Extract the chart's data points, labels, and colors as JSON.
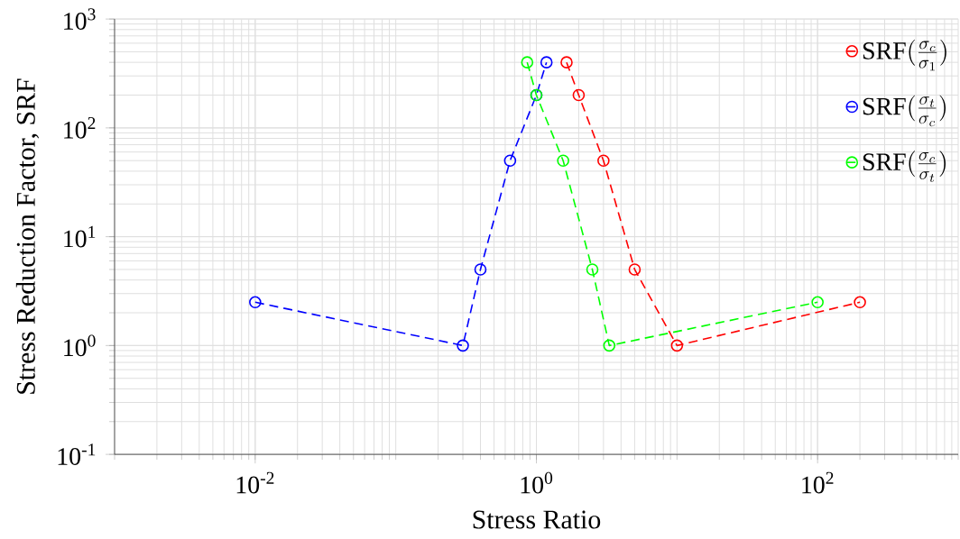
{
  "chart_data": {
    "type": "line",
    "xlabel": "Stress Ratio",
    "ylabel": "Stress Reduction Factor, SRF",
    "log": "xy",
    "xlim": [
      0.001,
      1000
    ],
    "ylim": [
      0.1,
      1000
    ],
    "xticks": [
      {
        "value": 0.01,
        "label": "10$^{-2}$"
      },
      {
        "value": 1,
        "label": "10$^{0}$"
      },
      {
        "value": 100,
        "label": "10$^{2}$"
      }
    ],
    "yticks": [
      {
        "value": 0.1,
        "label": "10$^{-1}$"
      },
      {
        "value": 1,
        "label": "10$^{0}$"
      },
      {
        "value": 10,
        "label": "10$^{1}$"
      },
      {
        "value": 100,
        "label": "10$^{2}$"
      },
      {
        "value": 1000,
        "label": "10$^{3}$"
      }
    ],
    "grid": true,
    "legend": "top right",
    "marker": "circle",
    "line_style": "dashed",
    "series": [
      {
        "name": "\\mathrm{SRF}(\\frac{\\sigma_c}{\\sigma_1})",
        "color": "#ff0000",
        "x": [
          1.64,
          2,
          3,
          5,
          10,
          200
        ],
        "values": [
          400,
          200,
          50,
          5,
          1,
          2.5
        ]
      },
      {
        "name": "\\mathrm{SRF}(\\frac{\\sigma_t}{\\sigma_c})",
        "color": "#0000ff",
        "x": [
          0.01,
          0.3,
          0.4,
          0.65,
          1,
          1.18
        ],
        "values": [
          2.5,
          1,
          5,
          50,
          200,
          400
        ]
      },
      {
        "name": "\\mathrm{SRF}(\\frac{\\sigma_c}{\\sigma_t})",
        "color": "#00ff00",
        "x": [
          0.86,
          1,
          1.55,
          2.5,
          3.3,
          100
        ],
        "values": [
          400,
          200,
          50,
          5,
          1,
          2.5
        ]
      }
    ]
  }
}
